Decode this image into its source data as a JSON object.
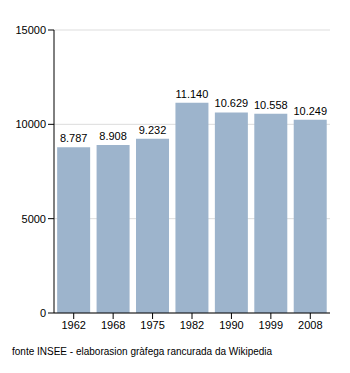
{
  "chart_data": {
    "type": "bar",
    "categories": [
      "1962",
      "1968",
      "1975",
      "1982",
      "1990",
      "1999",
      "2008"
    ],
    "values": [
      8787,
      8908,
      9232,
      11140,
      10629,
      10558,
      10249
    ],
    "value_labels": [
      "8.787",
      "8.908",
      "9.232",
      "11.140",
      "10.629",
      "10.558",
      "10.249"
    ],
    "color": "#9db4cc",
    "ylim": [
      0,
      15000
    ],
    "yticks": [
      0,
      5000,
      10000,
      15000
    ],
    "grid": true,
    "data_labels": true,
    "annotations": [
      "fonte INSEE - elaborasion gràfega rancurada da Wikipedia"
    ]
  }
}
